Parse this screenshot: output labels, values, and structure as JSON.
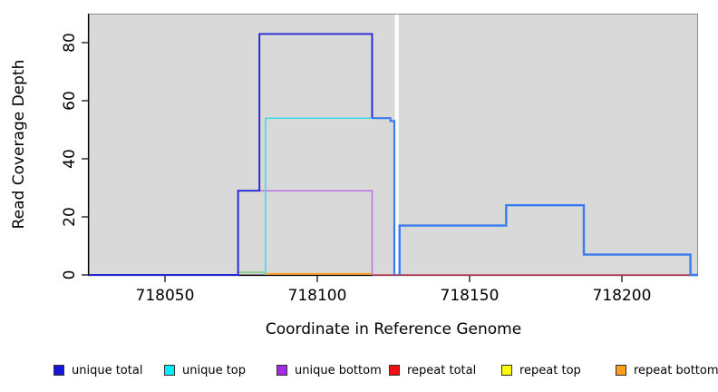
{
  "chart_data": {
    "type": "line",
    "title": "",
    "xlabel": "Coordinate in Reference Genome",
    "ylabel": "Read Coverage Depth",
    "xlim": [
      718025,
      718225
    ],
    "ylim": [
      0,
      90
    ],
    "grid": false,
    "plot_bg": "#d9d9d9",
    "x_ticks": [
      {
        "v": 718050,
        "label": "718050"
      },
      {
        "v": 718100,
        "label": "718100"
      },
      {
        "v": 718150,
        "label": "718150"
      },
      {
        "v": 718200,
        "label": "718200"
      }
    ],
    "y_ticks": [
      {
        "v": 0,
        "label": "0"
      },
      {
        "v": 20,
        "label": "20"
      },
      {
        "v": 40,
        "label": "40"
      },
      {
        "v": 60,
        "label": "60"
      },
      {
        "v": 80,
        "label": "80"
      }
    ],
    "coverage_gap": {
      "from": 718125.5,
      "to": 718126.7
    },
    "series": [
      {
        "name": "repeat-total",
        "color": "#d94f6d",
        "width": 1.6,
        "points": [
          [
            718118,
            0
          ],
          [
            718225,
            0
          ]
        ]
      },
      {
        "name": "repeat-top-blend",
        "color": "#7cc87c",
        "width": 1.6,
        "points": [
          [
            718074,
            0.9
          ],
          [
            718083,
            0.9
          ]
        ]
      },
      {
        "name": "repeat-bottom",
        "color": "#ff9e1b",
        "width": 2,
        "points": [
          [
            718083,
            0.35
          ],
          [
            718118,
            0.35
          ]
        ]
      },
      {
        "name": "unique-bottom",
        "color": "#bd72e0",
        "width": 1.5,
        "points": [
          [
            718074,
            0
          ],
          [
            718074,
            29
          ],
          [
            718118,
            29
          ],
          [
            718118,
            0
          ]
        ]
      },
      {
        "name": "unique-top",
        "color": "#35dde8",
        "width": 1.5,
        "points": [
          [
            718083,
            0
          ],
          [
            718083,
            54
          ],
          [
            718118,
            54
          ]
        ]
      },
      {
        "name": "unique-total",
        "color": "#2626d8",
        "width": 1.9,
        "points": [
          [
            718025,
            0
          ],
          [
            718074,
            0
          ],
          [
            718074,
            29
          ],
          [
            718081,
            29
          ],
          [
            718081,
            83
          ],
          [
            718118,
            83
          ],
          [
            718118,
            54
          ]
        ]
      },
      {
        "name": "total-left-of-gap",
        "color": "#3b7bf0",
        "width": 2.2,
        "points": [
          [
            718118,
            54
          ],
          [
            718124,
            54
          ],
          [
            718124,
            53
          ],
          [
            718125.3,
            53
          ],
          [
            718125.3,
            0
          ]
        ]
      },
      {
        "name": "total-right-of-gap",
        "color": "#3b7bf0",
        "width": 2.4,
        "points": [
          [
            718127,
            0
          ],
          [
            718127,
            17
          ],
          [
            718162,
            17
          ],
          [
            718162,
            24
          ],
          [
            718187.5,
            24
          ],
          [
            718187.5,
            7
          ],
          [
            718222.5,
            7
          ],
          [
            718222.5,
            0
          ],
          [
            718225,
            0
          ]
        ]
      }
    ]
  },
  "legend": {
    "items": [
      {
        "label": "unique total",
        "color": "#1414dd"
      },
      {
        "label": "unique top",
        "color": "#00eeff"
      },
      {
        "label": "unique bottom",
        "color": "#a429e8"
      },
      {
        "label": "repeat total",
        "color": "#ee1111"
      },
      {
        "label": "repeat top",
        "color": "#ffff00"
      },
      {
        "label": "repeat bottom",
        "color": "#ff9e1b"
      }
    ]
  }
}
